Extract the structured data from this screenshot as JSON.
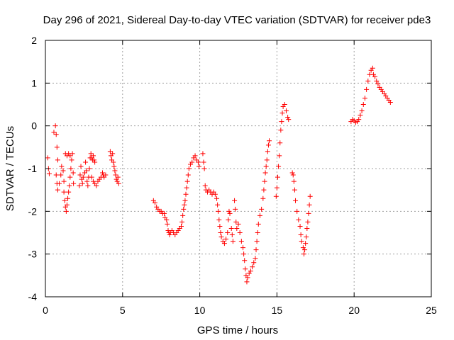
{
  "chart_data": {
    "type": "scatter",
    "title": "Day 296 of 2021, Sidereal Day-to-day VTEC variation (SDTVAR) for receiver pde3",
    "xlabel": "GPS time / hours",
    "ylabel": "SDTVAR / TECUs",
    "xlim": [
      0,
      25
    ],
    "ylim": [
      -4,
      2
    ],
    "xticks": [
      0,
      5,
      10,
      15,
      20,
      25
    ],
    "yticks": [
      -4,
      -3,
      -2,
      -1,
      0,
      1,
      2
    ],
    "grid": true,
    "marker": "+",
    "color": "#ff0000",
    "series": [
      {
        "name": "SDTVAR",
        "points": [
          [
            0.15,
            -0.75
          ],
          [
            0.2,
            -1.0
          ],
          [
            0.25,
            -1.12
          ],
          [
            0.55,
            -0.15
          ],
          [
            0.65,
            0.0
          ],
          [
            0.7,
            -0.2
          ],
          [
            0.75,
            -0.5
          ],
          [
            0.8,
            -0.8
          ],
          [
            0.7,
            -1.15
          ],
          [
            0.75,
            -1.35
          ],
          [
            0.8,
            -1.5
          ],
          [
            0.9,
            -1.35
          ],
          [
            1.0,
            -1.15
          ],
          [
            1.05,
            -0.95
          ],
          [
            1.15,
            -1.05
          ],
          [
            1.2,
            -1.3
          ],
          [
            1.2,
            -1.55
          ],
          [
            1.25,
            -1.75
          ],
          [
            1.3,
            -1.9
          ],
          [
            1.35,
            -2.0
          ],
          [
            1.4,
            -1.85
          ],
          [
            1.45,
            -1.7
          ],
          [
            1.5,
            -1.55
          ],
          [
            1.55,
            -1.4
          ],
          [
            1.6,
            -1.2
          ],
          [
            1.65,
            -1.0
          ],
          [
            1.7,
            -0.8
          ],
          [
            1.3,
            -0.65
          ],
          [
            1.4,
            -0.7
          ],
          [
            1.5,
            -0.65
          ],
          [
            1.6,
            -0.7
          ],
          [
            1.75,
            -0.65
          ],
          [
            1.8,
            -1.1
          ],
          [
            1.82,
            -1.35
          ],
          [
            2.2,
            -1.4
          ],
          [
            2.25,
            -1.15
          ],
          [
            2.3,
            -0.95
          ],
          [
            2.35,
            -1.25
          ],
          [
            2.4,
            -1.35
          ],
          [
            2.45,
            -1.2
          ],
          [
            2.55,
            -1.1
          ],
          [
            2.6,
            -0.85
          ],
          [
            2.65,
            -1.05
          ],
          [
            2.7,
            -1.3
          ],
          [
            2.75,
            -1.4
          ],
          [
            2.8,
            -1.2
          ],
          [
            2.85,
            -1.0
          ],
          [
            2.9,
            -0.75
          ],
          [
            2.95,
            -0.65
          ],
          [
            3.0,
            -0.75
          ],
          [
            3.05,
            -0.8
          ],
          [
            3.1,
            -0.7
          ],
          [
            3.15,
            -0.8
          ],
          [
            3.2,
            -0.85
          ],
          [
            3.0,
            -1.2
          ],
          [
            3.1,
            -1.3
          ],
          [
            3.2,
            -1.35
          ],
          [
            3.3,
            -1.4
          ],
          [
            3.4,
            -1.3
          ],
          [
            3.5,
            -1.25
          ],
          [
            3.6,
            -1.2
          ],
          [
            3.7,
            -1.1
          ],
          [
            3.75,
            -1.15
          ],
          [
            3.8,
            -1.2
          ],
          [
            3.9,
            -1.15
          ],
          [
            4.2,
            -0.6
          ],
          [
            4.25,
            -0.7
          ],
          [
            4.3,
            -0.8
          ],
          [
            4.35,
            -0.65
          ],
          [
            4.4,
            -0.85
          ],
          [
            4.45,
            -0.95
          ],
          [
            4.5,
            -1.05
          ],
          [
            4.55,
            -1.15
          ],
          [
            4.6,
            -1.25
          ],
          [
            4.65,
            -1.3
          ],
          [
            4.7,
            -1.2
          ],
          [
            4.75,
            -1.35
          ],
          [
            7.0,
            -1.75
          ],
          [
            7.1,
            -1.8
          ],
          [
            7.2,
            -1.9
          ],
          [
            7.3,
            -1.95
          ],
          [
            7.4,
            -2.0
          ],
          [
            7.5,
            -2.0
          ],
          [
            7.6,
            -2.05
          ],
          [
            7.7,
            -2.05
          ],
          [
            7.75,
            -2.15
          ],
          [
            7.85,
            -2.2
          ],
          [
            7.9,
            -2.3
          ],
          [
            7.95,
            -2.45
          ],
          [
            8.0,
            -2.5
          ],
          [
            8.05,
            -2.55
          ],
          [
            8.1,
            -2.5
          ],
          [
            8.2,
            -2.45
          ],
          [
            8.3,
            -2.5
          ],
          [
            8.4,
            -2.55
          ],
          [
            8.5,
            -2.5
          ],
          [
            8.6,
            -2.45
          ],
          [
            8.7,
            -2.4
          ],
          [
            8.8,
            -2.35
          ],
          [
            8.85,
            -2.25
          ],
          [
            8.9,
            -2.1
          ],
          [
            8.95,
            -1.95
          ],
          [
            9.0,
            -1.85
          ],
          [
            9.05,
            -1.75
          ],
          [
            9.1,
            -1.6
          ],
          [
            9.15,
            -1.45
          ],
          [
            9.2,
            -1.3
          ],
          [
            9.25,
            -1.15
          ],
          [
            9.3,
            -1.0
          ],
          [
            9.4,
            -0.9
          ],
          [
            9.5,
            -0.85
          ],
          [
            9.6,
            -0.75
          ],
          [
            9.7,
            -0.7
          ],
          [
            9.8,
            -0.8
          ],
          [
            9.9,
            -0.85
          ],
          [
            9.95,
            -0.95
          ],
          [
            10.2,
            -0.65
          ],
          [
            10.25,
            -0.85
          ],
          [
            10.3,
            -1.0
          ],
          [
            10.35,
            -1.4
          ],
          [
            10.4,
            -1.5
          ],
          [
            10.5,
            -1.55
          ],
          [
            10.6,
            -1.5
          ],
          [
            10.7,
            -1.55
          ],
          [
            10.8,
            -1.6
          ],
          [
            10.9,
            -1.55
          ],
          [
            11.0,
            -1.6
          ],
          [
            11.1,
            -1.7
          ],
          [
            11.15,
            -1.85
          ],
          [
            11.2,
            -2.0
          ],
          [
            11.25,
            -2.2
          ],
          [
            11.3,
            -2.35
          ],
          [
            11.35,
            -2.5
          ],
          [
            11.4,
            -2.6
          ],
          [
            11.5,
            -2.7
          ],
          [
            11.6,
            -2.75
          ],
          [
            11.7,
            -2.65
          ],
          [
            11.8,
            -2.5
          ],
          [
            11.85,
            -2.2
          ],
          [
            11.9,
            -2.0
          ],
          [
            11.95,
            -2.05
          ],
          [
            12.05,
            -2.4
          ],
          [
            12.1,
            -2.55
          ],
          [
            12.15,
            -2.7
          ],
          [
            12.25,
            -1.75
          ],
          [
            12.3,
            -1.95
          ],
          [
            12.35,
            -2.25
          ],
          [
            12.4,
            -2.4
          ],
          [
            12.5,
            -2.3
          ],
          [
            12.6,
            -2.5
          ],
          [
            12.7,
            -2.7
          ],
          [
            12.8,
            -2.85
          ],
          [
            12.85,
            -3.0
          ],
          [
            12.9,
            -3.15
          ],
          [
            12.95,
            -3.35
          ],
          [
            13.0,
            -3.5
          ],
          [
            13.05,
            -3.65
          ],
          [
            13.1,
            -3.55
          ],
          [
            13.2,
            -3.45
          ],
          [
            13.3,
            -3.4
          ],
          [
            13.4,
            -3.3
          ],
          [
            13.5,
            -3.2
          ],
          [
            13.6,
            -3.1
          ],
          [
            13.65,
            -2.9
          ],
          [
            13.7,
            -2.7
          ],
          [
            13.75,
            -2.5
          ],
          [
            13.8,
            -2.3
          ],
          [
            13.9,
            -2.1
          ],
          [
            14.0,
            -1.95
          ],
          [
            14.1,
            -1.7
          ],
          [
            14.15,
            -1.5
          ],
          [
            14.2,
            -1.3
          ],
          [
            14.25,
            -1.1
          ],
          [
            14.3,
            -0.95
          ],
          [
            14.35,
            -0.8
          ],
          [
            14.4,
            -0.6
          ],
          [
            14.45,
            -0.45
          ],
          [
            14.5,
            -0.35
          ],
          [
            14.95,
            -1.65
          ],
          [
            15.0,
            -1.45
          ],
          [
            15.05,
            -1.2
          ],
          [
            15.1,
            -0.95
          ],
          [
            15.15,
            -0.7
          ],
          [
            15.2,
            -0.4
          ],
          [
            15.25,
            -0.1
          ],
          [
            15.3,
            0.1
          ],
          [
            15.35,
            0.3
          ],
          [
            15.4,
            0.45
          ],
          [
            15.5,
            0.5
          ],
          [
            15.6,
            0.35
          ],
          [
            15.7,
            0.2
          ],
          [
            15.75,
            0.15
          ],
          [
            16.0,
            -1.1
          ],
          [
            16.05,
            -1.15
          ],
          [
            16.1,
            -1.3
          ],
          [
            16.15,
            -1.5
          ],
          [
            16.2,
            -1.75
          ],
          [
            16.3,
            -2.0
          ],
          [
            16.4,
            -2.2
          ],
          [
            16.5,
            -2.35
          ],
          [
            16.55,
            -2.55
          ],
          [
            16.6,
            -2.7
          ],
          [
            16.7,
            -2.85
          ],
          [
            16.75,
            -3.0
          ],
          [
            16.8,
            -2.9
          ],
          [
            16.85,
            -2.75
          ],
          [
            16.9,
            -2.6
          ],
          [
            16.95,
            -2.4
          ],
          [
            17.0,
            -2.25
          ],
          [
            17.05,
            -2.05
          ],
          [
            17.1,
            -1.85
          ],
          [
            17.15,
            -1.65
          ],
          [
            19.8,
            0.1
          ],
          [
            19.9,
            0.15
          ],
          [
            20.0,
            0.12
          ],
          [
            20.1,
            0.08
          ],
          [
            20.2,
            0.1
          ],
          [
            20.3,
            0.15
          ],
          [
            20.4,
            0.25
          ],
          [
            20.5,
            0.35
          ],
          [
            20.6,
            0.5
          ],
          [
            20.7,
            0.65
          ],
          [
            20.8,
            0.85
          ],
          [
            20.9,
            1.05
          ],
          [
            21.0,
            1.2
          ],
          [
            21.1,
            1.3
          ],
          [
            21.2,
            1.35
          ],
          [
            21.25,
            1.2
          ],
          [
            21.35,
            1.15
          ],
          [
            21.45,
            1.05
          ],
          [
            21.55,
            0.98
          ],
          [
            21.65,
            0.9
          ],
          [
            21.75,
            0.85
          ],
          [
            21.85,
            0.8
          ],
          [
            21.95,
            0.75
          ],
          [
            22.05,
            0.7
          ],
          [
            22.15,
            0.65
          ],
          [
            22.25,
            0.6
          ],
          [
            22.35,
            0.55
          ]
        ]
      }
    ]
  }
}
